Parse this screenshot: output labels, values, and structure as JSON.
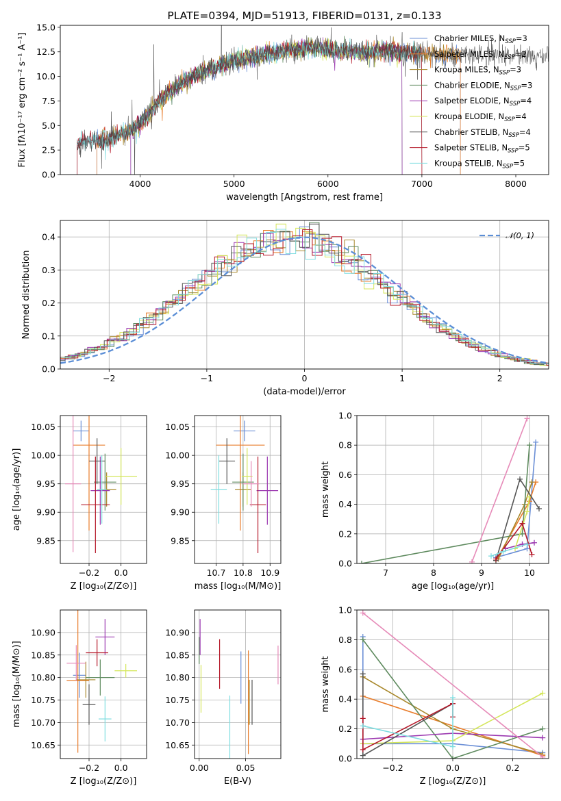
{
  "palette": {
    "Chabrier MILES": "#6b8fd6",
    "Salpeter MILES": "#e87d2c",
    "Kroupa MILES": "#a8872a",
    "Chabrier ELODIE": "#5e8a5e",
    "Salpeter ELODIE": "#9b37b0",
    "Kroupa ELODIE": "#d4e65a",
    "Chabrier STELIB": "#555555",
    "Salpeter STELIB": "#b5192a",
    "Kroupa STELIB": "#7fdde0",
    "extra": "#e68ab8",
    "gaussian": "#5b8ed6"
  },
  "chart_data": [
    {
      "id": "spectrum",
      "type": "line",
      "title": "PLATE=0394, MJD=51913, FIBERID=0131, z=0.133",
      "xlabel": "wavelength [Angstrom, rest frame]",
      "ylabel": "Flux [fλ10⁻¹⁷ erg cm⁻² s⁻¹ A⁻¹]",
      "xlim": [
        3150,
        8350
      ],
      "ylim": [
        0,
        15.2
      ],
      "xticks": [
        4000,
        5000,
        6000,
        7000,
        8000
      ],
      "yticks": [
        0.0,
        2.5,
        5.0,
        7.5,
        10.0,
        12.5,
        15.0
      ],
      "grid": false,
      "legend_position": "top-right",
      "legend": [
        {
          "base": "Chabrier MILES, N",
          "sub": "SSP",
          "rest": "=3"
        },
        {
          "base": "Salpeter MILES, N",
          "sub": "SSP",
          "rest": "=2"
        },
        {
          "base": "Kroupa MILES, N",
          "sub": "SSP",
          "rest": "=3"
        },
        {
          "base": "Chabrier ELODIE, N",
          "sub": "SSP",
          "rest": "=3"
        },
        {
          "base": "Salpeter ELODIE, N",
          "sub": "SSP",
          "rest": "=4"
        },
        {
          "base": "Kroupa ELODIE, N",
          "sub": "SSP",
          "rest": "=4"
        },
        {
          "base": "Chabrier STELIB, N",
          "sub": "SSP",
          "rest": "=4"
        },
        {
          "base": "Salpeter STELIB, N",
          "sub": "SSP",
          "rest": "=5"
        },
        {
          "base": "Kroupa STELIB, N",
          "sub": "SSP",
          "rest": "=5"
        }
      ],
      "continuum": {
        "x": [
          3330,
          3500,
          3700,
          3900,
          4000,
          4100,
          4200,
          4400,
          4600,
          4800,
          5000,
          5200,
          5400,
          5600,
          5800,
          6000,
          6200,
          6400,
          6600,
          6800,
          7000,
          7200,
          7400
        ],
        "y": [
          3.2,
          3.4,
          3.7,
          4.5,
          5.3,
          6.2,
          7.5,
          9.0,
          10.2,
          11.0,
          11.6,
          12.0,
          12.3,
          12.6,
          12.9,
          12.7,
          12.5,
          12.4,
          12.6,
          12.5,
          12.3,
          12.2,
          12.1
        ]
      },
      "model_ranges": {
        "Chabrier MILES": [
          3540,
          7410
        ],
        "Salpeter MILES": [
          3540,
          7410
        ],
        "Kroupa MILES": [
          3540,
          7410
        ],
        "Chabrier ELODIE": [
          3900,
          6790
        ],
        "Salpeter ELODIE": [
          3900,
          6790
        ],
        "Kroupa ELODIE": [
          3900,
          6790
        ],
        "Chabrier STELIB": [
          3330,
          7000
        ],
        "Salpeter STELIB": [
          3330,
          7000
        ],
        "Kroupa STELIB": [
          3330,
          7000
        ]
      }
    },
    {
      "id": "residuals",
      "type": "line",
      "xlabel": "(data-model)/error",
      "ylabel": "Normed distribution",
      "xlim": [
        -2.5,
        2.5
      ],
      "ylim": [
        0,
        0.45
      ],
      "xticks": [
        -2,
        -1,
        0,
        1,
        2
      ],
      "yticks": [
        0.0,
        0.1,
        0.2,
        0.3,
        0.4
      ],
      "grid": true,
      "legend_position": "top-right",
      "legend": "𝒩(0, 1)",
      "bin_width": 0.1,
      "series": [
        "Chabrier MILES",
        "Salpeter MILES",
        "Kroupa MILES",
        "Chabrier ELODIE",
        "Salpeter ELODIE",
        "Kroupa ELODIE",
        "Chabrier STELIB",
        "Salpeter STELIB",
        "Kroupa STELIB"
      ]
    },
    {
      "id": "z-age",
      "type": "scatter",
      "xlabel": "Z [log₁₀(Z/Z⊙)]",
      "ylabel": "age  [log₁₀(age/yr)]",
      "xlim": [
        -0.38,
        0.16
      ],
      "ylim": [
        9.81,
        10.07
      ],
      "xticks": [
        -0.2,
        0.0
      ],
      "yticks": [
        9.85,
        9.9,
        9.95,
        10.0,
        10.05
      ],
      "grid": true,
      "points": [
        {
          "c": "Chabrier MILES",
          "x": -0.25,
          "xerr": 0.05,
          "y": 10.043,
          "yerr": 0.018
        },
        {
          "c": "Salpeter MILES",
          "x": -0.2,
          "xerr": 0.1,
          "y": 10.018,
          "yerr": 0.15
        },
        {
          "c": "Kroupa MILES",
          "x": -0.09,
          "xerr": 0.06,
          "y": 9.94,
          "yerr": 0.03
        },
        {
          "c": "Chabrier ELODIE",
          "x": -0.1,
          "xerr": 0.07,
          "y": 9.953,
          "yerr": 0.05
        },
        {
          "c": "Salpeter ELODIE",
          "x": -0.13,
          "xerr": 0.06,
          "y": 9.938,
          "yerr": 0.06
        },
        {
          "c": "Kroupa ELODIE",
          "x": 0.0,
          "xerr": 0.1,
          "y": 9.963,
          "yerr": 0.05
        },
        {
          "c": "Chabrier STELIB",
          "x": -0.15,
          "xerr": 0.05,
          "y": 9.99,
          "yerr": 0.04
        },
        {
          "c": "Salpeter STELIB",
          "x": -0.16,
          "xerr": 0.09,
          "y": 9.913,
          "yerr": 0.085
        },
        {
          "c": "Kroupa STELIB",
          "x": -0.12,
          "xerr": 0.03,
          "y": 9.94,
          "yerr": 0.06
        },
        {
          "c": "extra",
          "x": -0.3,
          "xerr": 0.05,
          "y": 9.95,
          "yerr": 0.12
        }
      ]
    },
    {
      "id": "mass-age",
      "type": "scatter",
      "xlabel": "mass [log₁₀(M/M⊙)]",
      "ylabel": "",
      "xlim": [
        10.62,
        10.94
      ],
      "ylim": [
        9.81,
        10.07
      ],
      "xticks": [
        10.7,
        10.8,
        10.9
      ],
      "yticks": [
        9.85,
        9.9,
        9.95,
        10.0,
        10.05
      ],
      "grid": true,
      "points": [
        {
          "c": "Chabrier MILES",
          "x": 10.805,
          "xerr": 0.04,
          "y": 10.043,
          "yerr": 0.018
        },
        {
          "c": "Salpeter MILES",
          "x": 10.79,
          "xerr": 0.09,
          "y": 10.018,
          "yerr": 0.15
        },
        {
          "c": "Kroupa MILES",
          "x": 10.8,
          "xerr": 0.03,
          "y": 9.94,
          "yerr": 0.03
        },
        {
          "c": "Chabrier ELODIE",
          "x": 10.8,
          "xerr": 0.04,
          "y": 9.953,
          "yerr": 0.05
        },
        {
          "c": "Salpeter ELODIE",
          "x": 10.89,
          "xerr": 0.04,
          "y": 9.938,
          "yerr": 0.06
        },
        {
          "c": "Kroupa ELODIE",
          "x": 10.815,
          "xerr": 0.02,
          "y": 9.963,
          "yerr": 0.05
        },
        {
          "c": "Chabrier STELIB",
          "x": 10.74,
          "xerr": 0.03,
          "y": 9.99,
          "yerr": 0.04
        },
        {
          "c": "Salpeter STELIB",
          "x": 10.855,
          "xerr": 0.03,
          "y": 9.913,
          "yerr": 0.085
        },
        {
          "c": "Kroupa STELIB",
          "x": 10.71,
          "xerr": 0.03,
          "y": 9.94,
          "yerr": 0.06
        },
        {
          "c": "extra",
          "x": 10.83,
          "xerr": 0.03,
          "y": 9.95,
          "yerr": 0.04
        }
      ]
    },
    {
      "id": "age-weight",
      "type": "line",
      "xlabel": "age  [log₁₀(age/yr)]",
      "ylabel": "mass weight",
      "xlim": [
        6.4,
        10.4
      ],
      "ylim": [
        0,
        1.0
      ],
      "xticks": [
        7,
        8,
        9,
        10
      ],
      "yticks": [
        0.0,
        0.2,
        0.4,
        0.6,
        0.8,
        1.0
      ],
      "grid": true,
      "series": [
        {
          "c": "Chabrier MILES",
          "x": [
            9.3,
            9.95,
            10.13
          ],
          "y": [
            0.04,
            0.1,
            0.82
          ]
        },
        {
          "c": "Salpeter MILES",
          "x": [
            9.3,
            10.0,
            10.13
          ],
          "y": [
            0.02,
            0.42,
            0.55
          ]
        },
        {
          "c": "Kroupa MILES",
          "x": [
            9.35,
            9.9,
            10.05
          ],
          "y": [
            0.03,
            0.4,
            0.55
          ]
        },
        {
          "c": "Chabrier ELODIE",
          "x": [
            6.5,
            9.85,
            10.0
          ],
          "y": [
            0.0,
            0.2,
            0.8
          ]
        },
        {
          "c": "Salpeter ELODIE",
          "x": [
            9.5,
            9.85,
            10.1
          ],
          "y": [
            0.1,
            0.13,
            0.14
          ]
        },
        {
          "c": "Kroupa ELODIE",
          "x": [
            9.7,
            9.95,
            10.0
          ],
          "y": [
            0.1,
            0.35,
            0.45
          ]
        },
        {
          "c": "Chabrier STELIB",
          "x": [
            9.3,
            9.8,
            10.2
          ],
          "y": [
            0.02,
            0.57,
            0.37
          ]
        },
        {
          "c": "Salpeter STELIB",
          "x": [
            9.3,
            9.85,
            10.05
          ],
          "y": [
            0.03,
            0.27,
            0.06
          ]
        },
        {
          "c": "Kroupa STELIB",
          "x": [
            9.2,
            9.45,
            9.95
          ],
          "y": [
            0.05,
            0.08,
            0.13
          ]
        },
        {
          "c": "extra",
          "x": [
            8.8,
            9.95
          ],
          "y": [
            0.01,
            0.98
          ]
        }
      ]
    },
    {
      "id": "z-mass",
      "type": "scatter",
      "xlabel": "Z [log₁₀(Z/Z⊙)]",
      "ylabel": "mass [log₁₀(M/M⊙)]",
      "xlim": [
        -0.38,
        0.16
      ],
      "ylim": [
        10.62,
        10.95
      ],
      "xticks": [
        -0.2,
        0.0
      ],
      "yticks": [
        10.65,
        10.7,
        10.75,
        10.8,
        10.85,
        10.9
      ],
      "grid": true,
      "points": [
        {
          "c": "Chabrier MILES",
          "x": -0.26,
          "xerr": 0.04,
          "y": 10.805,
          "yerr": 0.05
        },
        {
          "c": "Salpeter MILES",
          "x": -0.27,
          "xerr": 0.07,
          "y": 10.793,
          "yerr": 0.16
        },
        {
          "c": "Kroupa MILES",
          "x": -0.22,
          "xerr": 0.06,
          "y": 10.795,
          "yerr": 0.04
        },
        {
          "c": "Chabrier ELODIE",
          "x": -0.13,
          "xerr": 0.09,
          "y": 10.8,
          "yerr": 0.04
        },
        {
          "c": "Salpeter ELODIE",
          "x": -0.1,
          "xerr": 0.06,
          "y": 10.89,
          "yerr": 0.04
        },
        {
          "c": "Kroupa ELODIE",
          "x": 0.03,
          "xerr": 0.07,
          "y": 10.815,
          "yerr": 0.015
        },
        {
          "c": "Chabrier STELIB",
          "x": -0.2,
          "xerr": 0.04,
          "y": 10.74,
          "yerr": 0.045
        },
        {
          "c": "Salpeter STELIB",
          "x": -0.15,
          "xerr": 0.07,
          "y": 10.855,
          "yerr": 0.03
        },
        {
          "c": "Kroupa STELIB",
          "x": -0.1,
          "xerr": 0.04,
          "y": 10.708,
          "yerr": 0.05
        },
        {
          "c": "extra",
          "x": -0.28,
          "xerr": 0.06,
          "y": 10.832,
          "yerr": 0.04
        }
      ]
    },
    {
      "id": "ebv-mass",
      "type": "scatter",
      "xlabel": "E(B-V)",
      "ylabel": "",
      "xlim": [
        -0.005,
        0.088
      ],
      "ylim": [
        10.62,
        10.95
      ],
      "xticks": [
        0.0,
        0.05
      ],
      "yticks": [
        10.65,
        10.7,
        10.75,
        10.8,
        10.85,
        10.9
      ],
      "grid": true,
      "points": [
        {
          "c": "Chabrier MILES",
          "x": 0.045,
          "xerr": 0,
          "y": 10.8,
          "yerr": 0.058
        },
        {
          "c": "Salpeter MILES",
          "x": 0.053,
          "xerr": 0,
          "y": 10.745,
          "yerr": 0.115
        },
        {
          "c": "Kroupa MILES",
          "x": 0.054,
          "xerr": 0,
          "y": 10.745,
          "yerr": 0.05
        },
        {
          "c": "Chabrier ELODIE",
          "x": 0.0,
          "xerr": 0,
          "y": 10.86,
          "yerr": 0.03
        },
        {
          "c": "Salpeter ELODIE",
          "x": 0.001,
          "xerr": 0,
          "y": 10.89,
          "yerr": 0.04
        },
        {
          "c": "Kroupa ELODIE",
          "x": 0.002,
          "xerr": 0,
          "y": 10.775,
          "yerr": 0.053
        },
        {
          "c": "Chabrier STELIB",
          "x": 0.057,
          "xerr": 0,
          "y": 10.745,
          "yerr": 0.05
        },
        {
          "c": "Salpeter STELIB",
          "x": 0.022,
          "xerr": 0,
          "y": 10.83,
          "yerr": 0.055
        },
        {
          "c": "Kroupa STELIB",
          "x": 0.033,
          "xerr": 0,
          "y": 10.69,
          "yerr": 0.07
        },
        {
          "c": "extra",
          "x": 0.085,
          "xerr": 0,
          "y": 10.828,
          "yerr": 0.043
        }
      ]
    },
    {
      "id": "z-weight",
      "type": "line",
      "xlabel": "Z [log₁₀(Z/Z⊙)]",
      "ylabel": "mass weight",
      "xlim": [
        -0.32,
        0.32
      ],
      "ylim": [
        0,
        1.0
      ],
      "xticks": [
        -0.2,
        0.0,
        0.2
      ],
      "yticks": [
        0.0,
        0.2,
        0.4,
        0.6,
        0.8,
        1.0
      ],
      "grid": true,
      "series": [
        {
          "c": "Chabrier MILES",
          "x": [
            -0.3,
            -0.3,
            0.0,
            0.3
          ],
          "y": [
            0.82,
            0.1,
            0.1,
            0.04
          ]
        },
        {
          "c": "Salpeter MILES",
          "x": [
            -0.3,
            -0.3,
            0.3
          ],
          "y": [
            0.55,
            0.42,
            0.02
          ]
        },
        {
          "c": "Kroupa MILES",
          "x": [
            -0.3,
            0.0,
            0.3
          ],
          "y": [
            0.55,
            0.2,
            0.03
          ]
        },
        {
          "c": "Chabrier ELODIE",
          "x": [
            -0.3,
            0.0,
            0.3
          ],
          "y": [
            0.8,
            0.0,
            0.2
          ]
        },
        {
          "c": "Salpeter ELODIE",
          "x": [
            -0.3,
            0.0,
            0.3
          ],
          "y": [
            0.13,
            0.17,
            0.14
          ]
        },
        {
          "c": "Kroupa ELODIE",
          "x": [
            -0.3,
            0.0,
            0.3
          ],
          "y": [
            0.1,
            0.12,
            0.44
          ]
        },
        {
          "c": "Chabrier STELIB",
          "x": [
            -0.3,
            -0.3,
            0.0
          ],
          "y": [
            0.57,
            0.02,
            0.37
          ]
        },
        {
          "c": "Salpeter STELIB",
          "x": [
            -0.3,
            -0.3,
            0.0,
            0.0
          ],
          "y": [
            0.27,
            0.06,
            0.37,
            0.28
          ]
        },
        {
          "c": "Kroupa STELIB",
          "x": [
            -0.3,
            0.0,
            0.0
          ],
          "y": [
            0.22,
            0.08,
            0.41
          ]
        },
        {
          "c": "extra",
          "x": [
            -0.3,
            0.3
          ],
          "y": [
            0.98,
            0.01
          ]
        }
      ]
    }
  ]
}
